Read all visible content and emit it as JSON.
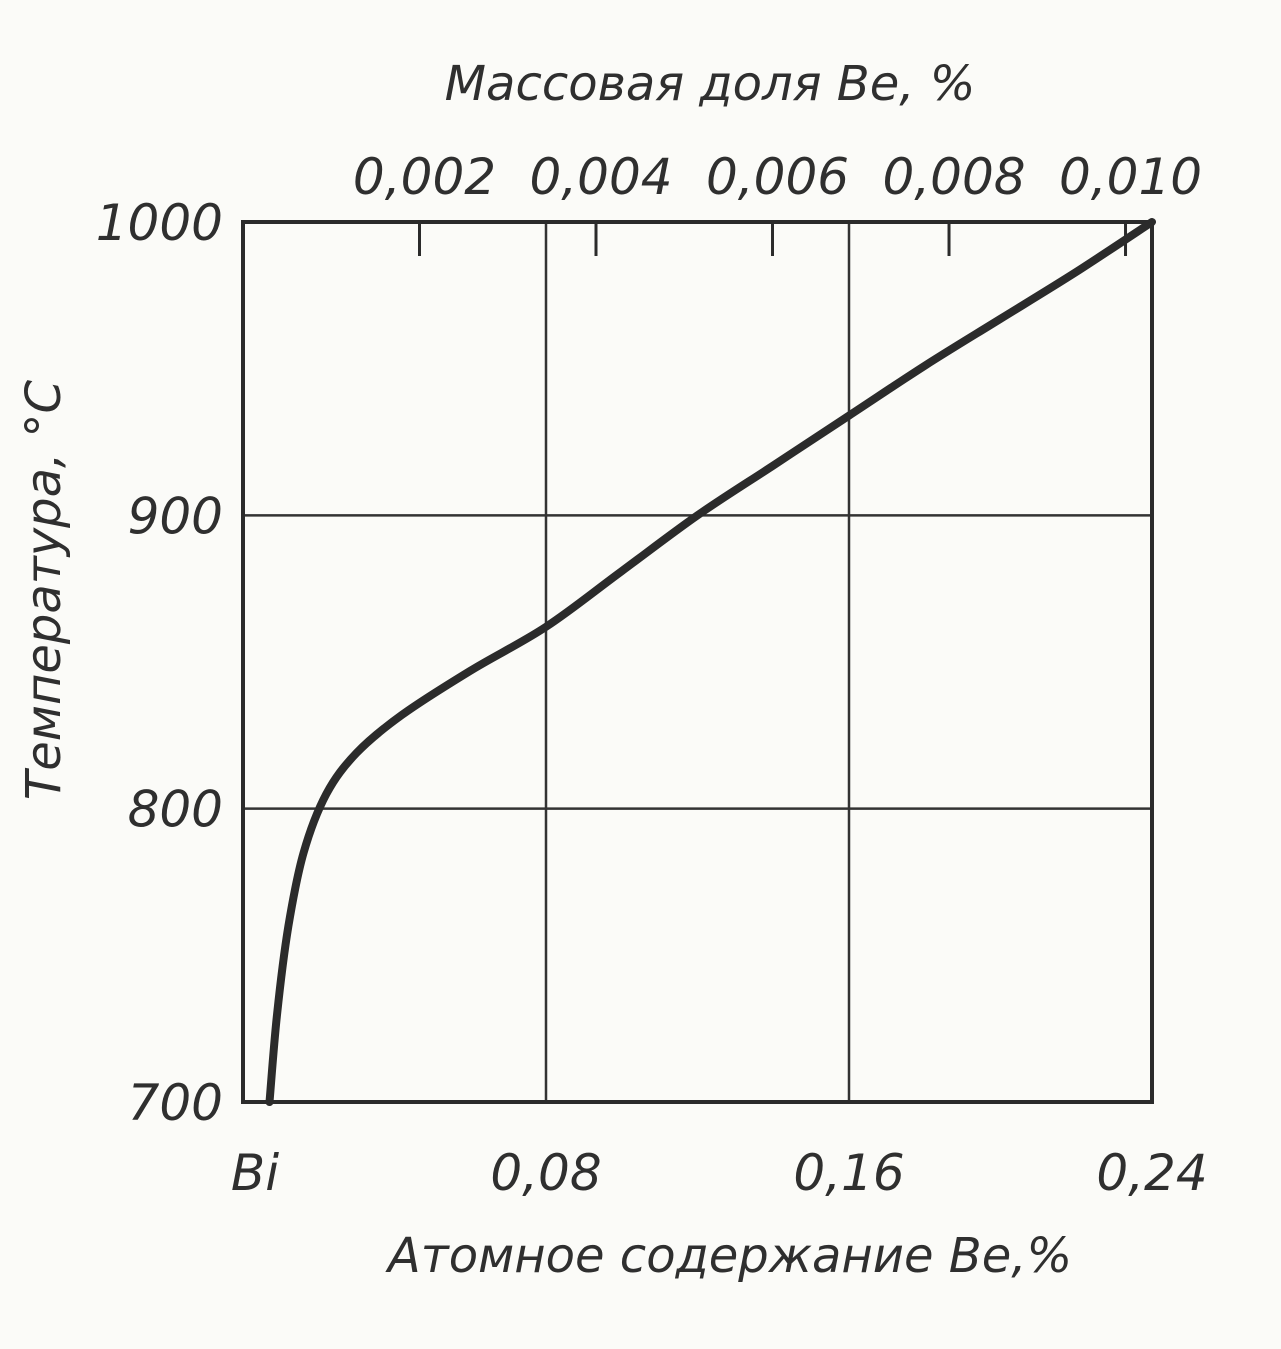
{
  "chart_data": {
    "type": "line",
    "title": "",
    "xlabel": "Атомное содержание Be,%",
    "x2label": "Массовая доля Be, %",
    "ylabel": "Температура, °C",
    "xlim": [
      0,
      0.24
    ],
    "ylim": [
      700,
      1000
    ],
    "x_ticks": [
      {
        "value": 0,
        "label": "Bi"
      },
      {
        "value": 0.08,
        "label": "0,08"
      },
      {
        "value": 0.16,
        "label": "0,16"
      },
      {
        "value": 0.24,
        "label": "0,24"
      }
    ],
    "x2_ticks": [
      {
        "value": 0.002,
        "label": "0,002"
      },
      {
        "value": 0.004,
        "label": "0,004"
      },
      {
        "value": 0.006,
        "label": "0,006"
      },
      {
        "value": 0.008,
        "label": "0,008"
      },
      {
        "value": 0.01,
        "label": "0,010"
      }
    ],
    "x2lim": [
      0,
      0.0103
    ],
    "y_ticks": [
      {
        "value": 700,
        "label": "700"
      },
      {
        "value": 800,
        "label": "800"
      },
      {
        "value": 900,
        "label": "900"
      },
      {
        "value": 1000,
        "label": "1000"
      }
    ],
    "grid": true,
    "series": [
      {
        "color": "#2b2b2b",
        "x": [
          0.007,
          0.009,
          0.012,
          0.016,
          0.022,
          0.03,
          0.042,
          0.06,
          0.08,
          0.1,
          0.12,
          0.14,
          0.16,
          0.18,
          0.2,
          0.22,
          0.24
        ],
        "y": [
          700,
          730,
          760,
          785,
          805,
          819,
          832,
          847,
          862,
          881,
          900,
          917,
          934,
          951,
          967,
          983,
          1000
        ]
      }
    ]
  }
}
